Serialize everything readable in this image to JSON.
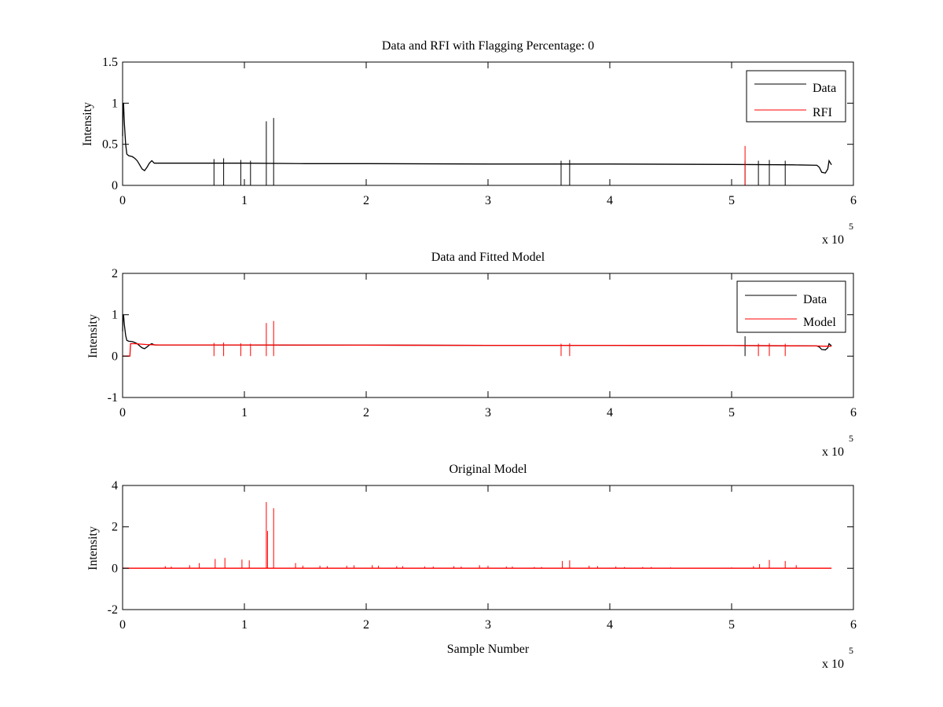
{
  "figure": {
    "background": "#ffffff"
  },
  "chart_data": [
    {
      "type": "line",
      "title": "Data and RFI with Flagging Percentage: 0",
      "xlabel": "",
      "ylabel": "Intensity",
      "xlim": [
        0,
        6
      ],
      "ylim": [
        0,
        1.5
      ],
      "xticks": [
        "0",
        "1",
        "2",
        "3",
        "4",
        "5",
        "6"
      ],
      "yticks": [
        "0",
        "0.5",
        "1",
        "1.5"
      ],
      "x_exponent": {
        "base": "x 10",
        "power": "5"
      },
      "x_scale": 100000,
      "legend": {
        "placement": "top-right"
      },
      "grid": false,
      "series": [
        {
          "name": "Data",
          "color": "#000000",
          "points": [
            [
              0,
              0.6
            ],
            [
              0.003,
              0.95
            ],
            [
              0.008,
              1.0
            ],
            [
              0.015,
              0.75
            ],
            [
              0.025,
              0.5
            ],
            [
              0.035,
              0.38
            ],
            [
              0.05,
              0.36
            ],
            [
              0.08,
              0.35
            ],
            [
              0.1,
              0.33
            ],
            [
              0.12,
              0.3
            ],
            [
              0.14,
              0.25
            ],
            [
              0.16,
              0.2
            ],
            [
              0.18,
              0.18
            ],
            [
              0.2,
              0.22
            ],
            [
              0.22,
              0.27
            ],
            [
              0.24,
              0.3
            ],
            [
              0.26,
              0.27
            ],
            [
              0.3,
              0.27
            ],
            [
              0.5,
              0.27
            ],
            [
              1.0,
              0.27
            ],
            [
              1.5,
              0.265
            ],
            [
              2.0,
              0.265
            ],
            [
              3.0,
              0.26
            ],
            [
              4.0,
              0.26
            ],
            [
              5.0,
              0.255
            ],
            [
              5.5,
              0.25
            ],
            [
              5.7,
              0.245
            ],
            [
              5.72,
              0.22
            ],
            [
              5.74,
              0.16
            ],
            [
              5.77,
              0.15
            ],
            [
              5.79,
              0.2
            ],
            [
              5.8,
              0.3
            ],
            [
              5.82,
              0.25
            ]
          ],
          "spikes": [
            [
              0.75,
              0.32
            ],
            [
              0.83,
              0.33
            ],
            [
              0.97,
              0.31
            ],
            [
              1.05,
              0.3
            ],
            [
              1.18,
              0.78
            ],
            [
              1.24,
              0.82
            ],
            [
              3.6,
              0.3
            ],
            [
              3.67,
              0.31
            ],
            [
              5.11,
              0.3
            ],
            [
              5.22,
              0.3
            ],
            [
              5.31,
              0.31
            ],
            [
              5.44,
              0.3
            ]
          ]
        },
        {
          "name": "RFI",
          "color": "#ff0000",
          "points": [],
          "spikes": [
            [
              5.11,
              0.48
            ]
          ]
        }
      ]
    },
    {
      "type": "line",
      "title": "Data and Fitted Model",
      "xlabel": "",
      "ylabel": "Intensity",
      "xlim": [
        0,
        6
      ],
      "ylim": [
        -1,
        2
      ],
      "xticks": [
        "0",
        "1",
        "2",
        "3",
        "4",
        "5",
        "6"
      ],
      "yticks": [
        "-1",
        "0",
        "1",
        "2"
      ],
      "x_exponent": {
        "base": "x 10",
        "power": "5"
      },
      "x_scale": 100000,
      "legend": {
        "placement": "top-right"
      },
      "grid": false,
      "series": [
        {
          "name": "Data",
          "color": "#000000",
          "points": [
            [
              0,
              0.6
            ],
            [
              0.003,
              0.95
            ],
            [
              0.008,
              1.0
            ],
            [
              0.015,
              0.75
            ],
            [
              0.025,
              0.5
            ],
            [
              0.035,
              0.38
            ],
            [
              0.05,
              0.36
            ],
            [
              0.08,
              0.35
            ],
            [
              0.1,
              0.33
            ],
            [
              0.12,
              0.3
            ],
            [
              0.14,
              0.25
            ],
            [
              0.16,
              0.2
            ],
            [
              0.18,
              0.18
            ],
            [
              0.2,
              0.22
            ],
            [
              0.22,
              0.27
            ],
            [
              0.24,
              0.3
            ],
            [
              0.26,
              0.27
            ],
            [
              0.3,
              0.27
            ],
            [
              0.5,
              0.27
            ],
            [
              1.0,
              0.27
            ],
            [
              1.5,
              0.265
            ],
            [
              2.0,
              0.265
            ],
            [
              3.0,
              0.26
            ],
            [
              4.0,
              0.26
            ],
            [
              5.0,
              0.255
            ],
            [
              5.5,
              0.25
            ],
            [
              5.7,
              0.245
            ],
            [
              5.72,
              0.22
            ],
            [
              5.74,
              0.16
            ],
            [
              5.77,
              0.15
            ],
            [
              5.79,
              0.2
            ],
            [
              5.8,
              0.3
            ],
            [
              5.82,
              0.25
            ]
          ],
          "spikes": [
            [
              5.11,
              0.48
            ]
          ]
        },
        {
          "name": "Model",
          "color": "#ff0000",
          "points": [
            [
              0,
              0
            ],
            [
              0.06,
              0
            ],
            [
              0.065,
              0.3
            ],
            [
              0.1,
              0.3
            ],
            [
              0.2,
              0.28
            ],
            [
              0.3,
              0.27
            ],
            [
              1.0,
              0.27
            ],
            [
              2.0,
              0.265
            ],
            [
              3.0,
              0.26
            ],
            [
              4.0,
              0.26
            ],
            [
              5.0,
              0.255
            ],
            [
              5.5,
              0.25
            ],
            [
              5.7,
              0.245
            ],
            [
              5.75,
              0.24
            ],
            [
              5.82,
              0.24
            ]
          ],
          "spikes": [
            [
              0.75,
              0.32
            ],
            [
              0.83,
              0.33
            ],
            [
              0.97,
              0.31
            ],
            [
              1.05,
              0.3
            ],
            [
              1.18,
              0.8
            ],
            [
              1.24,
              0.85
            ],
            [
              3.6,
              0.3
            ],
            [
              3.67,
              0.31
            ],
            [
              5.22,
              0.3
            ],
            [
              5.31,
              0.31
            ],
            [
              5.44,
              0.3
            ]
          ]
        }
      ]
    },
    {
      "type": "line",
      "title": "Original Model",
      "xlabel": "Sample Number",
      "ylabel": "Intensity",
      "xlim": [
        0,
        6
      ],
      "ylim": [
        -2,
        4
      ],
      "xticks": [
        "0",
        "1",
        "2",
        "3",
        "4",
        "5",
        "6"
      ],
      "yticks": [
        "-2",
        "0",
        "2",
        "4"
      ],
      "x_exponent": {
        "base": "x 10",
        "power": "5"
      },
      "x_scale": 100000,
      "legend": null,
      "grid": false,
      "series": [
        {
          "name": "",
          "color": "#ff0000",
          "points": [
            [
              0,
              0
            ],
            [
              5.82,
              0
            ]
          ],
          "spikes": [
            [
              0.35,
              0.1
            ],
            [
              0.4,
              0.08
            ],
            [
              0.55,
              0.15
            ],
            [
              0.63,
              0.25
            ],
            [
              0.76,
              0.45
            ],
            [
              0.84,
              0.5
            ],
            [
              0.98,
              0.42
            ],
            [
              1.04,
              0.38
            ],
            [
              1.18,
              3.2
            ],
            [
              1.19,
              1.8
            ],
            [
              1.24,
              2.9
            ],
            [
              1.42,
              0.25
            ],
            [
              1.48,
              0.12
            ],
            [
              1.62,
              0.12
            ],
            [
              1.68,
              0.1
            ],
            [
              1.84,
              0.12
            ],
            [
              1.9,
              0.14
            ],
            [
              2.05,
              0.15
            ],
            [
              2.1,
              0.12
            ],
            [
              2.25,
              0.1
            ],
            [
              2.3,
              0.1
            ],
            [
              2.48,
              0.08
            ],
            [
              2.55,
              0.08
            ],
            [
              2.72,
              0.1
            ],
            [
              2.78,
              0.08
            ],
            [
              2.93,
              0.15
            ],
            [
              3.0,
              0.12
            ],
            [
              3.15,
              0.08
            ],
            [
              3.2,
              0.08
            ],
            [
              3.38,
              0.06
            ],
            [
              3.44,
              0.06
            ],
            [
              3.61,
              0.35
            ],
            [
              3.67,
              0.38
            ],
            [
              3.83,
              0.12
            ],
            [
              3.9,
              0.1
            ],
            [
              4.05,
              0.08
            ],
            [
              4.12,
              0.06
            ],
            [
              4.27,
              0.06
            ],
            [
              4.34,
              0.06
            ],
            [
              4.5,
              0.04
            ],
            [
              5.0,
              0.04
            ],
            [
              5.18,
              0.1
            ],
            [
              5.23,
              0.2
            ],
            [
              5.31,
              0.4
            ],
            [
              5.44,
              0.35
            ],
            [
              5.53,
              0.15
            ]
          ]
        }
      ]
    }
  ]
}
